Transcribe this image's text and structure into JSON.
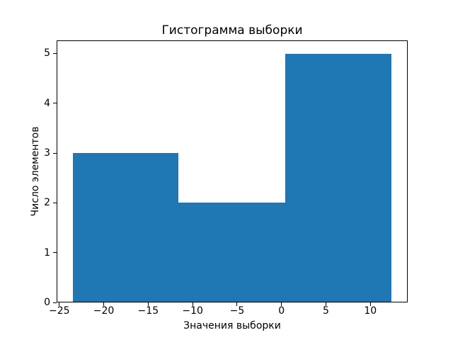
{
  "chart_data": {
    "type": "bar",
    "subtype": "histogram",
    "title": "Гистограмма выборки",
    "xlabel": "Значения выборки",
    "ylabel": "Число элементов",
    "bin_edges": [
      -23.5,
      -11.6,
      0.4,
      12.4
    ],
    "counts": [
      3,
      2,
      5
    ],
    "n_bins": 3,
    "xlim": [
      -25.3,
      14.2
    ],
    "ylim": [
      0,
      5.25
    ],
    "xticks": [
      -25,
      -20,
      -15,
      -10,
      -5,
      0,
      5,
      10
    ],
    "yticks": [
      0,
      1,
      2,
      3,
      4,
      5
    ],
    "xtick_labels": [
      "−25",
      "−20",
      "−15",
      "−10",
      "−5",
      "0",
      "5",
      "10"
    ],
    "ytick_labels": [
      "0",
      "1",
      "2",
      "3",
      "4",
      "5"
    ],
    "bar_color": "#1f77b4",
    "spine_color": "#000000",
    "text_color": "#000000",
    "background_color": "#ffffff",
    "grid": false,
    "legend_position": "none"
  }
}
